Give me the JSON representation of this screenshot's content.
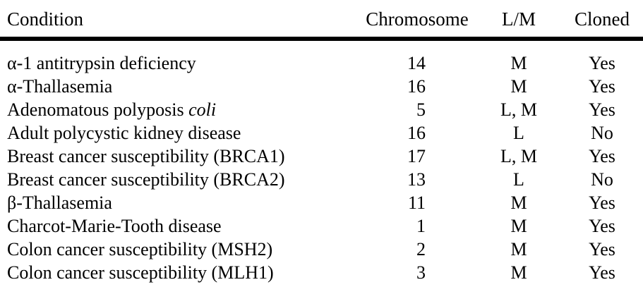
{
  "table": {
    "headers": {
      "condition": "Condition",
      "chromosome": "Chromosome",
      "lm": "L/M",
      "cloned": "Cloned"
    },
    "rows": [
      {
        "condition": "α-1 antitrypsin deficiency",
        "condition_italic": "",
        "chromosome": "14",
        "lm": "M",
        "cloned": "Yes"
      },
      {
        "condition": "α-Thallasemia",
        "condition_italic": "",
        "chromosome": "16",
        "lm": "M",
        "cloned": "Yes"
      },
      {
        "condition": "Adenomatous polyposis ",
        "condition_italic": "coli",
        "chromosome": "5",
        "lm": "L, M",
        "cloned": "Yes"
      },
      {
        "condition": "Adult polycystic kidney disease",
        "condition_italic": "",
        "chromosome": "16",
        "lm": "L",
        "cloned": "No"
      },
      {
        "condition": "Breast cancer susceptibility (BRCA1)",
        "condition_italic": "",
        "chromosome": "17",
        "lm": "L, M",
        "cloned": "Yes"
      },
      {
        "condition": "Breast cancer susceptibility (BRCA2)",
        "condition_italic": "",
        "chromosome": "13",
        "lm": "L",
        "cloned": "No"
      },
      {
        "condition": "β-Thallasemia",
        "condition_italic": "",
        "chromosome": "11",
        "lm": "M",
        "cloned": "Yes"
      },
      {
        "condition": "Charcot-Marie-Tooth disease",
        "condition_italic": "",
        "chromosome": "1",
        "lm": "M",
        "cloned": "Yes"
      },
      {
        "condition": "Colon cancer susceptibility (MSH2)",
        "condition_italic": "",
        "chromosome": "2",
        "lm": "M",
        "cloned": "Yes"
      },
      {
        "condition": "Colon cancer susceptibility (MLH1)",
        "condition_italic": "",
        "chromosome": "3",
        "lm": "M",
        "cloned": "Yes"
      }
    ]
  },
  "colors": {
    "text": "#000000",
    "background": "#ffffff",
    "header_rule": "#000000"
  }
}
